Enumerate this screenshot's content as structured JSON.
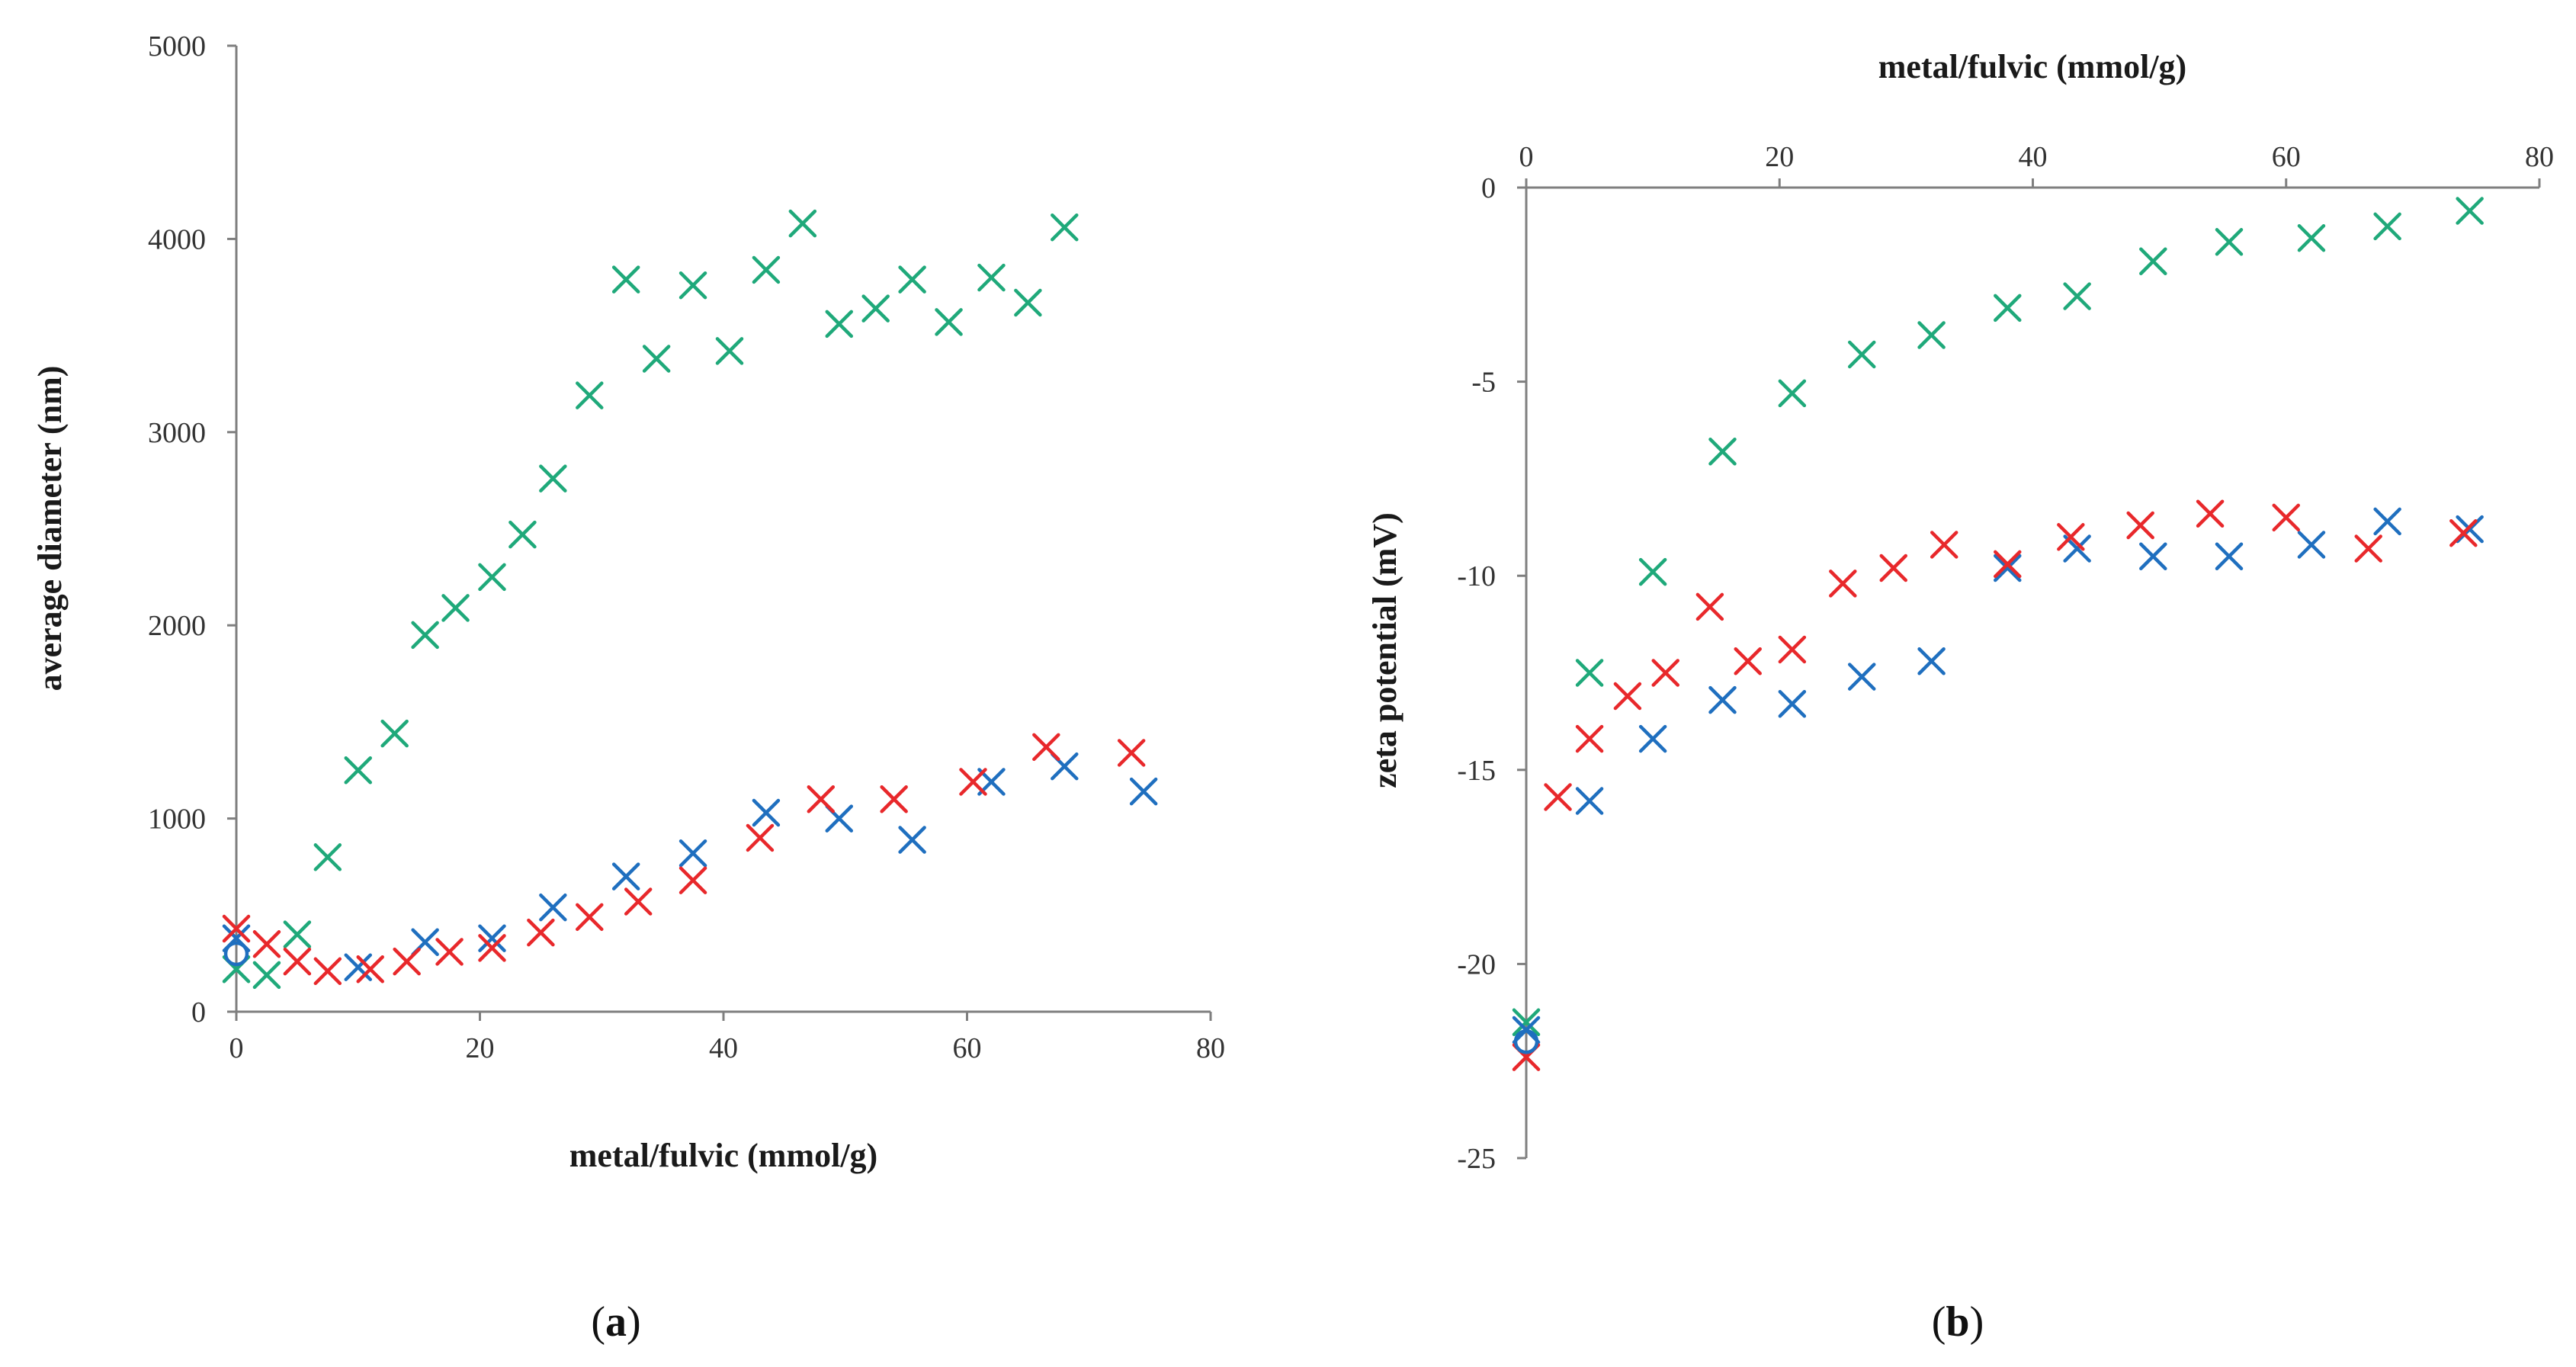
{
  "figure_labels": {
    "a_open": "(",
    "a_letter": "a",
    "a_close": ")",
    "b_open": "(",
    "b_letter": "b",
    "b_close": ")"
  },
  "chart_data": [
    {
      "id": "a",
      "type": "scatter",
      "title": "",
      "xlabel": "metal/fulvic (mmol/g)",
      "ylabel": "average diameter (nm)",
      "xlim": [
        0,
        80
      ],
      "ylim": [
        0,
        5000
      ],
      "x_ticks": [
        0,
        20,
        40,
        60,
        80
      ],
      "y_ticks": [
        0,
        1000,
        2000,
        3000,
        4000,
        5000
      ],
      "x_axis_position": "bottom",
      "grid": false,
      "legend": "none",
      "series": [
        {
          "name": "green",
          "color": "#1fa97a",
          "marker": "x",
          "points": [
            [
              0,
              220
            ],
            [
              2.5,
              190
            ],
            [
              5,
              400
            ],
            [
              7.5,
              800
            ],
            [
              10,
              1250
            ],
            [
              13,
              1440
            ],
            [
              15.5,
              1950
            ],
            [
              18,
              2090
            ],
            [
              21,
              2250
            ],
            [
              23.5,
              2470
            ],
            [
              26,
              2760
            ],
            [
              29,
              3190
            ],
            [
              32,
              3790
            ],
            [
              34.5,
              3380
            ],
            [
              37.5,
              3760
            ],
            [
              40.5,
              3420
            ],
            [
              43.5,
              3840
            ],
            [
              46.5,
              4080
            ],
            [
              49.5,
              3560
            ],
            [
              52.5,
              3640
            ],
            [
              55.5,
              3790
            ],
            [
              58.5,
              3570
            ],
            [
              62,
              3800
            ],
            [
              65,
              3670
            ],
            [
              68,
              4060
            ]
          ]
        },
        {
          "name": "blue",
          "color": "#1f6fbf",
          "marker": "x",
          "points": [
            [
              0,
              380
            ],
            [
              10,
              230
            ],
            [
              15.5,
              360
            ],
            [
              21,
              380
            ],
            [
              26,
              540
            ],
            [
              32,
              700
            ],
            [
              37.5,
              820
            ],
            [
              43.5,
              1030
            ],
            [
              49.5,
              1000
            ],
            [
              55.5,
              890
            ],
            [
              62,
              1190
            ],
            [
              68,
              1270
            ],
            [
              74.5,
              1140
            ]
          ]
        },
        {
          "name": "red",
          "color": "#e8282b",
          "marker": "x",
          "points": [
            [
              0,
              430
            ],
            [
              2.5,
              350
            ],
            [
              5,
              260
            ],
            [
              7.5,
              210
            ],
            [
              11,
              220
            ],
            [
              14,
              260
            ],
            [
              17.5,
              310
            ],
            [
              21,
              330
            ],
            [
              25,
              410
            ],
            [
              29,
              490
            ],
            [
              33,
              570
            ],
            [
              37.5,
              680
            ],
            [
              43,
              900
            ],
            [
              48,
              1100
            ],
            [
              54,
              1100
            ],
            [
              60.5,
              1190
            ],
            [
              66.5,
              1370
            ],
            [
              73.5,
              1340
            ]
          ]
        },
        {
          "name": "circle",
          "color": "#1f6fbf",
          "marker": "o",
          "points": [
            [
              0,
              300
            ]
          ]
        }
      ]
    },
    {
      "id": "b",
      "type": "scatter",
      "title": "",
      "xlabel": "metal/fulvic (mmol/g)",
      "ylabel": "zeta potential (mV)",
      "xlim": [
        0,
        80
      ],
      "ylim": [
        -25,
        0
      ],
      "x_ticks": [
        0,
        20,
        40,
        60,
        80
      ],
      "y_ticks": [
        0,
        -5,
        -10,
        -15,
        -20,
        -25
      ],
      "x_axis_position": "top",
      "grid": false,
      "legend": "none",
      "series": [
        {
          "name": "green",
          "color": "#1fa97a",
          "marker": "x",
          "points": [
            [
              0,
              -21.5
            ],
            [
              5,
              -12.5
            ],
            [
              10,
              -9.9
            ],
            [
              15.5,
              -6.8
            ],
            [
              21,
              -5.3
            ],
            [
              26.5,
              -4.3
            ],
            [
              32,
              -3.8
            ],
            [
              38,
              -3.1
            ],
            [
              43.5,
              -2.8
            ],
            [
              49.5,
              -1.9
            ],
            [
              55.5,
              -1.4
            ],
            [
              62,
              -1.3
            ],
            [
              68,
              -1.0
            ],
            [
              74.5,
              -0.6
            ]
          ]
        },
        {
          "name": "blue",
          "color": "#1f6fbf",
          "marker": "x",
          "points": [
            [
              0,
              -21.7
            ],
            [
              5,
              -15.8
            ],
            [
              10,
              -14.2
            ],
            [
              15.5,
              -13.2
            ],
            [
              21,
              -13.3
            ],
            [
              26.5,
              -12.6
            ],
            [
              32,
              -12.2
            ],
            [
              38,
              -9.8
            ],
            [
              43.5,
              -9.3
            ],
            [
              49.5,
              -9.5
            ],
            [
              55.5,
              -9.5
            ],
            [
              62,
              -9.2
            ],
            [
              68,
              -8.6
            ],
            [
              74.5,
              -8.8
            ]
          ]
        },
        {
          "name": "red",
          "color": "#e8282b",
          "marker": "x",
          "points": [
            [
              0,
              -22.4
            ],
            [
              2.5,
              -15.7
            ],
            [
              5,
              -14.2
            ],
            [
              8,
              -13.1
            ],
            [
              11,
              -12.5
            ],
            [
              14.5,
              -10.8
            ],
            [
              17.5,
              -12.2
            ],
            [
              21,
              -11.9
            ],
            [
              25,
              -10.2
            ],
            [
              29,
              -9.8
            ],
            [
              33,
              -9.2
            ],
            [
              38,
              -9.7
            ],
            [
              43,
              -9.0
            ],
            [
              48.5,
              -8.7
            ],
            [
              54,
              -8.4
            ],
            [
              60,
              -8.5
            ],
            [
              66.5,
              -9.3
            ],
            [
              74,
              -8.9
            ]
          ]
        },
        {
          "name": "circle",
          "color": "#1f6fbf",
          "marker": "o",
          "points": [
            [
              0,
              -22.0
            ]
          ]
        }
      ]
    }
  ]
}
